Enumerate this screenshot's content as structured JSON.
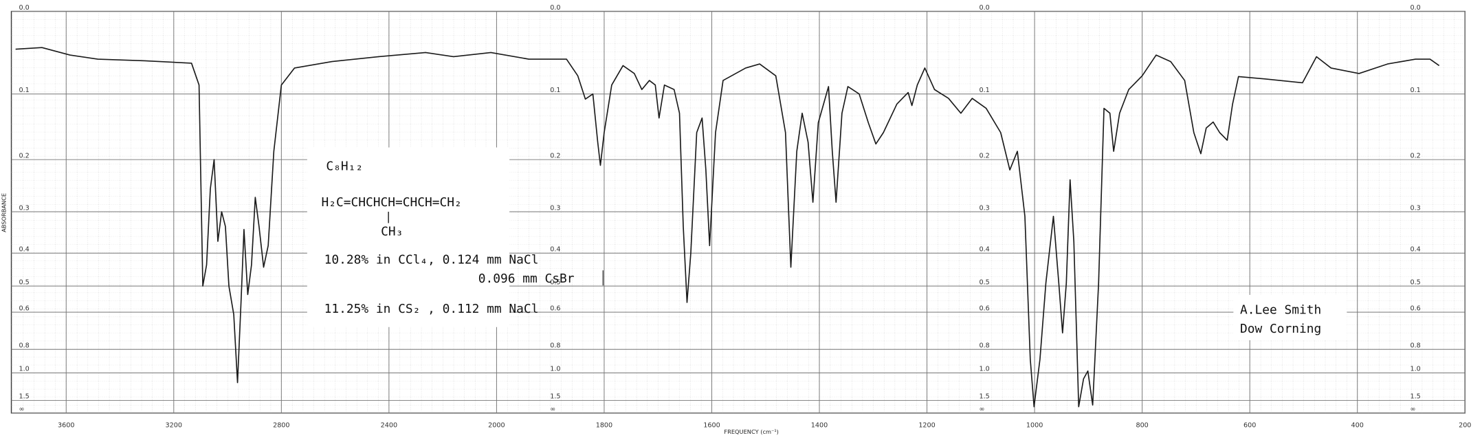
{
  "chart_data": {
    "type": "line",
    "y_scale": "absorbance",
    "grid": true,
    "color": "#1a1a1a",
    "xlabel": "FREQUENCY (cm⁻¹)",
    "ylabel": "ABSORBANCE",
    "xlim": [
      3800,
      200
    ],
    "xticks": [
      3600,
      3200,
      2800,
      2400,
      2000,
      1800,
      1600,
      1400,
      1200,
      1000,
      800,
      600,
      400,
      200
    ],
    "ylim": [
      0,
      null
    ],
    "yticks": [
      {
        "value": 0,
        "label": "0.0"
      },
      0.1,
      0.2,
      0.3,
      0.4,
      0.5,
      0.6,
      0.8,
      {
        "value": 1,
        "label": "1.0"
      },
      1.5,
      {
        "value": null,
        "label": "∞"
      }
    ],
    "annotations": {
      "formula": "C₈H₁₂",
      "structure": "H₂C=CHCHCH=CHCH=CH₂",
      "branch": "CH₃",
      "sample_1": "10.28% in CCl₄, 0.124 mm NaCl",
      "sample_1b": "0.096 mm CsBr",
      "sample_2": "11.25% in CS₂ , 0.112 mm NaCl",
      "author": "A.Lee Smith",
      "affiliation": "Dow Corning"
    },
    "x": [
      3788,
      3690,
      3586,
      3482,
      3308,
      3134,
      3106,
      3092,
      3078,
      3064,
      3050,
      3036,
      3022,
      3008,
      2995,
      2977,
      2963,
      2950,
      2939,
      2925,
      2911,
      2897,
      2883,
      2866,
      2849,
      2828,
      2800,
      2751,
      2612,
      2438,
      2264,
      2160,
      2021,
      1940,
      1870,
      1849,
      1835,
      1821,
      1812,
      1807,
      1800,
      1786,
      1765,
      1744,
      1730,
      1716,
      1705,
      1698,
      1688,
      1670,
      1660,
      1653,
      1646,
      1639,
      1628,
      1618,
      1611,
      1604,
      1593,
      1579,
      1537,
      1511,
      1481,
      1463,
      1453,
      1442,
      1432,
      1421,
      1412,
      1402,
      1383,
      1376,
      1369,
      1358,
      1347,
      1326,
      1309,
      1295,
      1281,
      1256,
      1235,
      1228,
      1218,
      1204,
      1186,
      1160,
      1137,
      1116,
      1090,
      1063,
      1046,
      1032,
      1018,
      1008,
      1001,
      990,
      979,
      965,
      955,
      948,
      941,
      934,
      927,
      918,
      909,
      901,
      892,
      881,
      871,
      860,
      853,
      842,
      825,
      800,
      774,
      747,
      721,
      704,
      691,
      681,
      668,
      656,
      642,
      632,
      621,
      572,
      502,
      476,
      449,
      397,
      344,
      292,
      265,
      248
    ],
    "values": [
      0.043,
      0.041,
      0.05,
      0.055,
      0.057,
      0.06,
      0.088,
      0.5,
      0.433,
      0.253,
      0.2,
      0.369,
      0.3,
      0.333,
      0.5,
      0.61,
      1.12,
      0.56,
      0.34,
      0.53,
      0.433,
      0.27,
      0.333,
      0.44,
      0.38,
      0.186,
      0.088,
      0.066,
      0.058,
      0.052,
      0.047,
      0.052,
      0.047,
      0.055,
      0.055,
      0.076,
      0.107,
      0.1,
      0.171,
      0.21,
      0.156,
      0.088,
      0.063,
      0.073,
      0.094,
      0.082,
      0.088,
      0.134,
      0.088,
      0.094,
      0.127,
      0.333,
      0.56,
      0.4,
      0.156,
      0.134,
      0.218,
      0.38,
      0.156,
      0.082,
      0.066,
      0.061,
      0.076,
      0.156,
      0.44,
      0.186,
      0.127,
      0.171,
      0.28,
      0.141,
      0.09,
      0.186,
      0.28,
      0.127,
      0.09,
      0.1,
      0.141,
      0.174,
      0.156,
      0.114,
      0.098,
      0.116,
      0.088,
      0.066,
      0.094,
      0.106,
      0.127,
      0.106,
      0.12,
      0.156,
      0.218,
      0.186,
      0.31,
      0.873,
      1.8,
      0.873,
      0.49,
      0.31,
      0.49,
      0.7,
      0.49,
      0.236,
      0.37,
      1.8,
      1.07,
      0.98,
      1.7,
      0.49,
      0.12,
      0.127,
      0.186,
      0.127,
      0.094,
      0.076,
      0.05,
      0.058,
      0.082,
      0.156,
      0.19,
      0.149,
      0.14,
      0.156,
      0.168,
      0.114,
      0.077,
      0.08,
      0.085,
      0.052,
      0.066,
      0.073,
      0.061,
      0.055,
      0.055,
      0.063
    ]
  }
}
